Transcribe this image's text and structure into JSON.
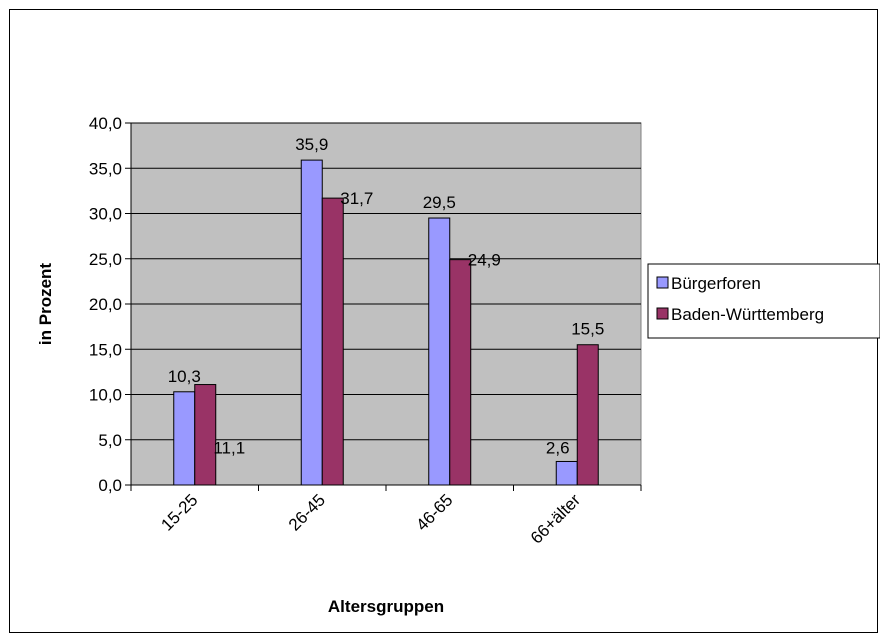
{
  "chart_data": {
    "type": "bar",
    "categories": [
      "15-25",
      "26-45",
      "46-65",
      "66+älter"
    ],
    "series": [
      {
        "name": "Bürgerforen",
        "values": [
          10.3,
          35.9,
          29.5,
          2.6
        ],
        "labels": [
          "10,3",
          "35,9",
          "29,5",
          "2,6"
        ],
        "color": "#9999ff"
      },
      {
        "name": "Baden-Württemberg",
        "values": [
          11.1,
          31.7,
          24.9,
          15.5
        ],
        "labels": [
          "11,1",
          "31,7",
          "24,9",
          "15,5"
        ],
        "color": "#993366"
      }
    ],
    "xlabel": "Altersgruppen",
    "ylabel": "in Prozent",
    "ylim": [
      0,
      40
    ],
    "yticks": [
      0,
      5,
      10,
      15,
      20,
      25,
      30,
      35,
      40
    ],
    "ytick_labels": [
      "0,0",
      "5,0",
      "10,0",
      "15,0",
      "20,0",
      "25,0",
      "30,0",
      "35,0",
      "40,0"
    ],
    "plot_background": "#c0c0c0",
    "grid": true,
    "legend_position": "right"
  }
}
